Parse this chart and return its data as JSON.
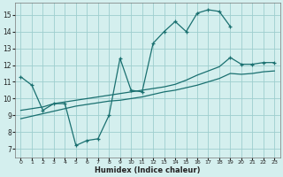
{
  "xlabel": "Humidex (Indice chaleur)",
  "xlim": [
    -0.5,
    23.5
  ],
  "ylim": [
    6.5,
    15.7
  ],
  "xticks": [
    0,
    1,
    2,
    3,
    4,
    5,
    6,
    7,
    8,
    9,
    10,
    11,
    12,
    13,
    14,
    15,
    16,
    17,
    18,
    19,
    20,
    21,
    22,
    23
  ],
  "yticks": [
    7,
    8,
    9,
    10,
    11,
    12,
    13,
    14,
    15
  ],
  "bg_color": "#d4efee",
  "grid_color": "#9ecece",
  "line_color": "#1a7070",
  "line1_x": [
    0,
    1,
    2,
    3,
    4,
    5,
    6,
    7,
    8,
    9,
    10,
    11,
    12,
    13,
    14,
    15,
    16,
    17,
    18,
    19
  ],
  "line1_y": [
    11.3,
    10.8,
    9.3,
    9.7,
    9.7,
    7.2,
    7.5,
    7.6,
    9.0,
    12.4,
    10.5,
    10.4,
    13.3,
    14.0,
    14.6,
    14.0,
    15.1,
    15.3,
    15.2,
    14.3
  ],
  "line2_x": [
    0,
    1,
    2,
    3,
    4,
    5,
    6,
    7,
    8,
    9,
    10,
    11,
    12,
    13,
    14,
    15,
    16,
    17,
    18,
    19,
    20,
    21,
    22,
    23
  ],
  "line2_y": [
    9.3,
    9.4,
    9.5,
    9.7,
    9.8,
    9.9,
    10.0,
    10.1,
    10.2,
    10.3,
    10.4,
    10.5,
    10.6,
    10.7,
    10.85,
    11.1,
    11.4,
    11.65,
    11.9,
    12.45,
    12.05,
    12.05,
    12.15,
    12.15
  ],
  "line3_x": [
    0,
    1,
    2,
    3,
    4,
    5,
    6,
    7,
    8,
    9,
    10,
    11,
    12,
    13,
    14,
    15,
    16,
    17,
    18,
    19,
    20,
    21,
    22,
    23
  ],
  "line3_y": [
    8.8,
    8.95,
    9.1,
    9.25,
    9.4,
    9.55,
    9.65,
    9.75,
    9.85,
    9.9,
    10.0,
    10.1,
    10.25,
    10.4,
    10.5,
    10.65,
    10.8,
    11.0,
    11.2,
    11.5,
    11.45,
    11.5,
    11.6,
    11.65
  ]
}
